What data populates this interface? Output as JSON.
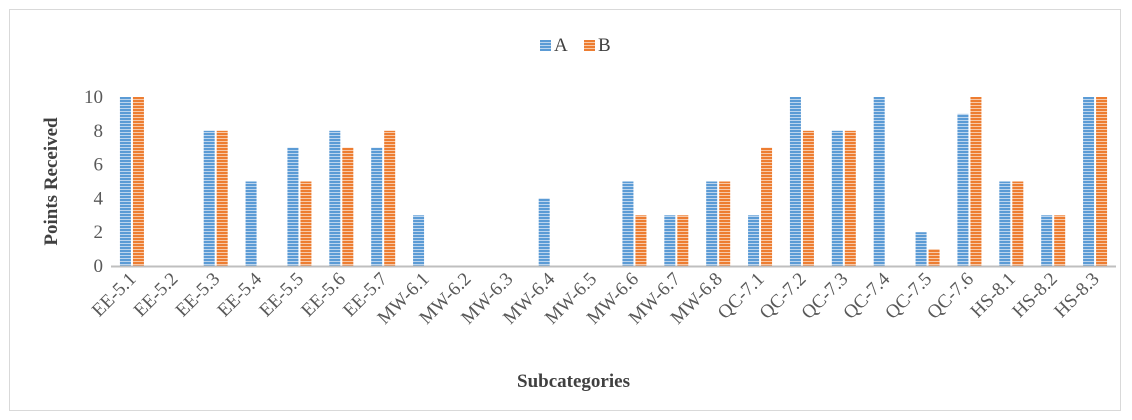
{
  "chart_data": {
    "type": "bar",
    "title": "",
    "xlabel": "Subcategories",
    "ylabel": "Points Received",
    "ylim": [
      0,
      10
    ],
    "yticks": [
      0,
      2,
      4,
      6,
      8,
      10
    ],
    "grid": false,
    "legend_position": "top-center",
    "categories": [
      "EE-5.1",
      "EE-5.2",
      "EE-5.3",
      "EE-5.4",
      "EE-5.5",
      "EE-5.6",
      "EE-5.7",
      "MW-6.1",
      "MW-6.2",
      "MW-6.3",
      "MW-6.4",
      "MW-6.5",
      "MW-6.6",
      "MW-6.7",
      "MW-6.8",
      "QC-7.1",
      "QC-7.2",
      "QC-7.3",
      "QC-7.4",
      "QC-7.5",
      "QC-7.6",
      "HS-8.1",
      "HS-8.2",
      "HS-8.3"
    ],
    "series": [
      {
        "name": "A",
        "color": "#5b9bd5",
        "values": [
          10,
          0,
          8,
          5,
          7,
          8,
          7,
          3,
          0,
          0,
          4,
          0,
          5,
          3,
          5,
          3,
          10,
          8,
          10,
          2,
          9,
          5,
          3,
          10
        ]
      },
      {
        "name": "B",
        "color": "#ed7d31",
        "values": [
          10,
          0,
          8,
          0,
          5,
          7,
          8,
          0,
          0,
          0,
          0,
          0,
          3,
          3,
          5,
          7,
          8,
          8,
          0,
          1,
          10,
          5,
          3,
          10
        ]
      }
    ]
  }
}
